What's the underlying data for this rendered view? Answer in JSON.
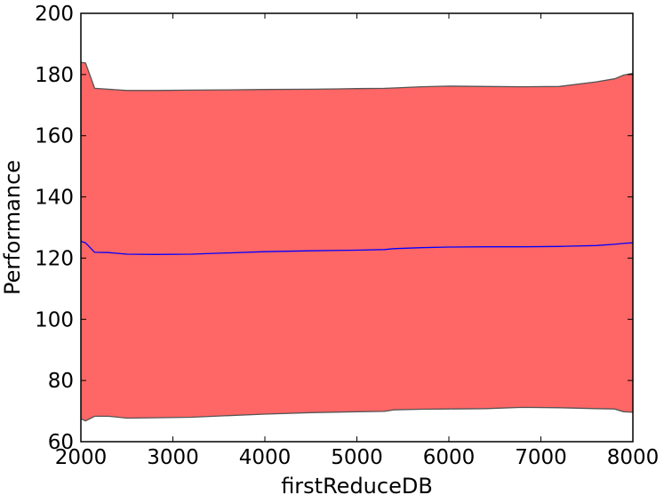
{
  "chart_data": {
    "type": "area",
    "xlabel": "firstReduceDB",
    "ylabel": "Performance",
    "xlim": [
      2000,
      8000
    ],
    "ylim": [
      60,
      200
    ],
    "xticks": [
      2000,
      3000,
      4000,
      5000,
      6000,
      7000,
      8000
    ],
    "yticks": [
      60,
      80,
      100,
      120,
      140,
      160,
      180,
      200
    ],
    "grid": false,
    "legend": "none",
    "x": [
      2000,
      2050,
      2150,
      2300,
      2500,
      2800,
      3200,
      3600,
      4000,
      4500,
      5000,
      5300,
      5400,
      5700,
      6000,
      6400,
      6800,
      7200,
      7600,
      7800,
      7900,
      8000
    ],
    "series": [
      {
        "role": "upper",
        "values": [
          184.0,
          183.8,
          175.5,
          175.2,
          174.8,
          174.8,
          174.9,
          175.0,
          175.1,
          175.2,
          175.4,
          175.5,
          175.6,
          176.0,
          176.2,
          176.1,
          176.0,
          176.1,
          177.6,
          178.6,
          179.8,
          180.4
        ]
      },
      {
        "role": "mean",
        "values": [
          125.5,
          125.0,
          121.9,
          121.8,
          121.3,
          121.2,
          121.3,
          121.7,
          122.1,
          122.4,
          122.6,
          122.8,
          123.1,
          123.4,
          123.6,
          123.7,
          123.7,
          123.8,
          124.1,
          124.5,
          124.8,
          125.0
        ]
      },
      {
        "role": "lower",
        "values": [
          67.5,
          66.8,
          68.3,
          68.3,
          67.7,
          67.8,
          68.0,
          68.5,
          69.0,
          69.5,
          69.8,
          69.9,
          70.4,
          70.6,
          70.7,
          70.8,
          71.2,
          71.1,
          70.8,
          70.7,
          69.8,
          69.6
        ]
      }
    ],
    "colors": {
      "band_fill": "#ff6666",
      "band_edge": "#555555",
      "mean_line": "#0000ff",
      "axes": "#000000"
    }
  }
}
